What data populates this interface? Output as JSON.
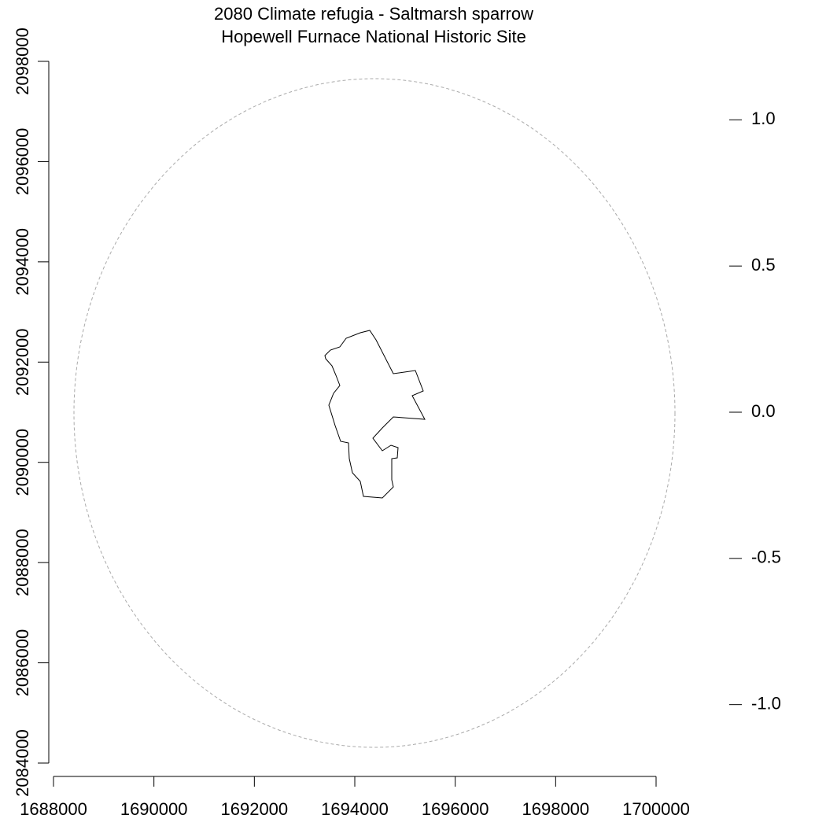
{
  "chart_data": {
    "type": "map",
    "title": "2080 Climate refugia - Saltmarsh sparrow",
    "subtitle": "Hopewell Furnace National Historic Site",
    "xlim": [
      1688000,
      1700000
    ],
    "xticks": [
      1688000,
      1690000,
      1692000,
      1694000,
      1696000,
      1698000,
      1700000
    ],
    "ylim": [
      2084000,
      2098000
    ],
    "yticks": [
      2084000,
      2086000,
      2088000,
      2090000,
      2092000,
      2094000,
      2096000,
      2098000
    ],
    "y2lim": [
      -1.2,
      1.2
    ],
    "y2ticks": [
      {
        "value": -1,
        "label": "-1.0"
      },
      -0.5,
      {
        "value": 0,
        "label": "0.0"
      },
      0.5,
      {
        "value": 1,
        "label": "1.0"
      }
    ]
  }
}
